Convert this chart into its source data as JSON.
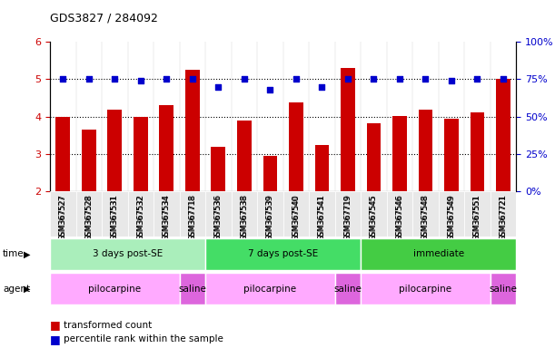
{
  "title": "GDS3827 / 284092",
  "samples": [
    "GSM367527",
    "GSM367528",
    "GSM367531",
    "GSM367532",
    "GSM367534",
    "GSM367718",
    "GSM367536",
    "GSM367538",
    "GSM367539",
    "GSM367540",
    "GSM367541",
    "GSM367719",
    "GSM367545",
    "GSM367546",
    "GSM367548",
    "GSM367549",
    "GSM367551",
    "GSM367721"
  ],
  "red_values": [
    4.0,
    3.65,
    4.18,
    4.0,
    4.3,
    5.25,
    3.18,
    3.9,
    2.95,
    4.38,
    3.25,
    5.3,
    3.82,
    4.02,
    4.18,
    3.95,
    4.12,
    5.0
  ],
  "blue_values": [
    75,
    75,
    75,
    74,
    75,
    75,
    70,
    75,
    68,
    75,
    70,
    75,
    75,
    75,
    75,
    74,
    75,
    75
  ],
  "ylim_left": [
    2,
    6
  ],
  "ylim_right": [
    0,
    100
  ],
  "yticks_left": [
    2,
    3,
    4,
    5,
    6
  ],
  "yticks_right": [
    0,
    25,
    50,
    75,
    100
  ],
  "time_groups": [
    {
      "label": "3 days post-SE",
      "start": 0,
      "end": 5,
      "color": "#aaeebb"
    },
    {
      "label": "7 days post-SE",
      "start": 6,
      "end": 11,
      "color": "#44dd66"
    },
    {
      "label": "immediate",
      "start": 12,
      "end": 17,
      "color": "#44cc44"
    }
  ],
  "agent_groups": [
    {
      "label": "pilocarpine",
      "start": 0,
      "end": 4,
      "color": "#ffaaff"
    },
    {
      "label": "saline",
      "start": 5,
      "end": 5,
      "color": "#dd66dd"
    },
    {
      "label": "pilocarpine",
      "start": 6,
      "end": 10,
      "color": "#ffaaff"
    },
    {
      "label": "saline",
      "start": 11,
      "end": 11,
      "color": "#dd66dd"
    },
    {
      "label": "pilocarpine",
      "start": 12,
      "end": 16,
      "color": "#ffaaff"
    },
    {
      "label": "saline",
      "start": 17,
      "end": 17,
      "color": "#dd66dd"
    }
  ],
  "bar_color": "#cc0000",
  "dot_color": "#0000cc",
  "bar_bottom": 2.0,
  "background_color": "#ffffff",
  "tick_label_color_left": "#cc0000",
  "tick_label_color_right": "#0000cc",
  "legend_items": [
    {
      "label": "transformed count",
      "color": "#cc0000"
    },
    {
      "label": "percentile rank within the sample",
      "color": "#0000cc"
    }
  ]
}
